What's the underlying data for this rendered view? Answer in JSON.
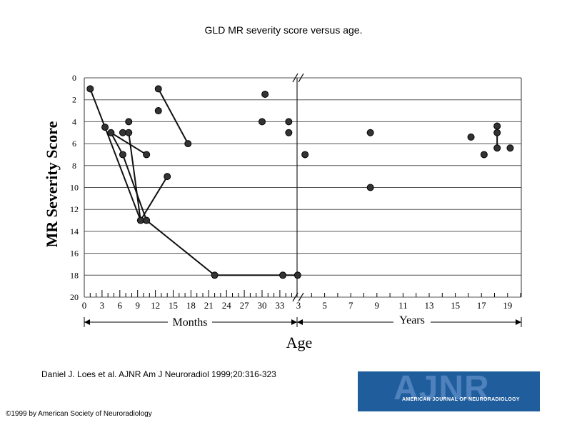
{
  "slide": {
    "title": "GLD MR severity score versus age.",
    "citation": "Daniel J. Loes et al. AJNR Am J Neuroradiol 1999;20:316-323",
    "copyright": "©1999 by American Society of Neuroradiology"
  },
  "logo": {
    "main": "AJNR",
    "sub": "AMERICAN JOURNAL OF NEURORADIOLOGY"
  },
  "chart_data": {
    "type": "scatter",
    "title": "",
    "ylabel": "MR Severity Score",
    "xlabel": "Age",
    "y_inverted": true,
    "ylim": [
      0,
      20
    ],
    "y_ticks": [
      "0",
      "2",
      "4",
      "6",
      "8",
      "10",
      "12",
      "14",
      "16",
      "18",
      "20"
    ],
    "grid": "horizontal",
    "axis_break": "between 33 months and 3 years",
    "months_axis": {
      "label": "Months",
      "range": [
        0,
        36
      ],
      "ticks": [
        "0",
        "3",
        "6",
        "9",
        "12",
        "15",
        "18",
        "21",
        "24",
        "27",
        "30",
        "33"
      ]
    },
    "years_axis": {
      "label": "Years",
      "range": [
        3,
        20
      ],
      "ticks": [
        "3",
        "5",
        "7",
        "9",
        "11",
        "13",
        "15",
        "17",
        "19"
      ]
    },
    "points": [
      {
        "unit": "months",
        "x": 1,
        "y": 1
      },
      {
        "unit": "months",
        "x": 3.5,
        "y": 4.5
      },
      {
        "unit": "months",
        "x": 4.5,
        "y": 5
      },
      {
        "unit": "months",
        "x": 6.5,
        "y": 5
      },
      {
        "unit": "months",
        "x": 6.5,
        "y": 7
      },
      {
        "unit": "months",
        "x": 7.5,
        "y": 4
      },
      {
        "unit": "months",
        "x": 7.5,
        "y": 5
      },
      {
        "unit": "months",
        "x": 10.5,
        "y": 7
      },
      {
        "unit": "months",
        "x": 12.5,
        "y": 1
      },
      {
        "unit": "months",
        "x": 12.5,
        "y": 3
      },
      {
        "unit": "months",
        "x": 17.5,
        "y": 6
      },
      {
        "unit": "months",
        "x": 9.5,
        "y": 13
      },
      {
        "unit": "months",
        "x": 10.5,
        "y": 13
      },
      {
        "unit": "months",
        "x": 14,
        "y": 9
      },
      {
        "unit": "months",
        "x": 22,
        "y": 18
      },
      {
        "unit": "months",
        "x": 30,
        "y": 4
      },
      {
        "unit": "months",
        "x": 30.5,
        "y": 1.5
      },
      {
        "unit": "months",
        "x": 34.5,
        "y": 4
      },
      {
        "unit": "months",
        "x": 34.5,
        "y": 5
      },
      {
        "unit": "months",
        "x": 33.5,
        "y": 18
      },
      {
        "unit": "months",
        "x": 36,
        "y": 18
      },
      {
        "unit": "years",
        "x": 3.5,
        "y": 7
      },
      {
        "unit": "years",
        "x": 8.5,
        "y": 5
      },
      {
        "unit": "years",
        "x": 8.5,
        "y": 10
      },
      {
        "unit": "years",
        "x": 16.2,
        "y": 5.4
      },
      {
        "unit": "years",
        "x": 17.2,
        "y": 7
      },
      {
        "unit": "years",
        "x": 18.2,
        "y": 4.4
      },
      {
        "unit": "years",
        "x": 18.2,
        "y": 5
      },
      {
        "unit": "years",
        "x": 18.2,
        "y": 6.4
      },
      {
        "unit": "years",
        "x": 19.2,
        "y": 6.4
      }
    ],
    "connections": [
      [
        0,
        1
      ],
      [
        1,
        11
      ],
      [
        11,
        13
      ],
      [
        2,
        4
      ],
      [
        4,
        12
      ],
      [
        12,
        14
      ],
      [
        14,
        20
      ],
      [
        2,
        7
      ],
      [
        6,
        11
      ],
      [
        8,
        10
      ],
      [
        27,
        28
      ]
    ]
  }
}
